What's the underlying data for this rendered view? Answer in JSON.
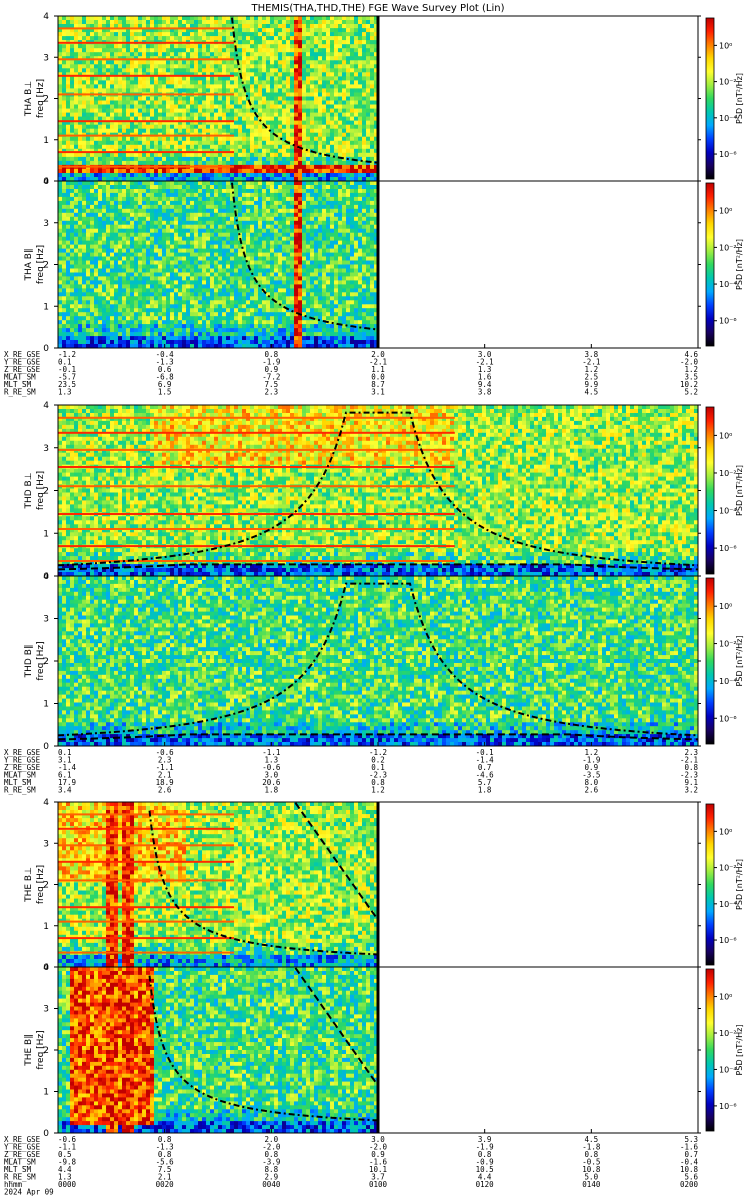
{
  "title": "THEMIS(THA,THD,THE) FGE Wave Survey Plot (Lin)",
  "colorbar": {
    "label": "PSD [nT²/Hz]",
    "ticks": [
      "10⁰",
      "10⁻²",
      "10⁻⁴",
      "10⁻⁶"
    ],
    "colors": [
      "#ffffff",
      "#c00000",
      "#ff2000",
      "#ff8000",
      "#ffd800",
      "#ffff30",
      "#a0ee40",
      "#30d860",
      "#00c8b0",
      "#00a8ff",
      "#0040ff",
      "#0000c0",
      "#180060",
      "#000000"
    ]
  },
  "axes": {
    "ylabel": "freq [Hz]",
    "yticks": [
      "0",
      "1",
      "2",
      "3",
      "4"
    ]
  },
  "ephem_labels": [
    "X_RE_GSE",
    "Y_RE_GSE",
    "Z_RE_GSE",
    "MLAT_SM",
    "MLT_SM",
    "R_RE_SM"
  ],
  "time_axis": {
    "hhmm_label": "hhmm",
    "date": "2024 Apr 09",
    "ticks": [
      "0000",
      "0020",
      "0040",
      "0100",
      "0120",
      "0140",
      "0200"
    ]
  },
  "chart_data": {
    "type": "heatmap",
    "x_axis": "time (hhmm)",
    "y_axis": "freq [Hz]",
    "ylim": [
      0,
      4
    ],
    "xlim": [
      "0000",
      "0200"
    ],
    "probes": [
      {
        "probe": "THA",
        "data_end": "0100",
        "panels": [
          {
            "name": "THA B⊥",
            "ylabel": "THA B⊥"
          },
          {
            "name": "THA B∥",
            "ylabel": "THA B∥"
          }
        ],
        "ephem_rows": [
          [
            "-1.2",
            "-0.4",
            "0.8",
            "2.0",
            "3.0",
            "3.8",
            "4.6"
          ],
          [
            "0.1",
            "-1.3",
            "-1.9",
            "-2.1",
            "-2.1",
            "-2.1",
            "-2.0"
          ],
          [
            "-0.1",
            "0.6",
            "0.9",
            "1.1",
            "1.3",
            "1.2",
            "1.2"
          ],
          [
            "-5.7",
            "-6.8",
            "-7.2",
            "0.0",
            "1.6",
            "2.5",
            "3.5"
          ],
          [
            "23.5",
            "6.9",
            "7.5",
            "8.7",
            "9.4",
            "9.9",
            "10.2"
          ],
          [
            "1.3",
            "1.5",
            "2.3",
            "3.1",
            "3.8",
            "4.5",
            "5.2"
          ]
        ]
      },
      {
        "probe": "THD",
        "data_end": "0200",
        "panels": [
          {
            "name": "THD B⊥",
            "ylabel": "THD B⊥"
          },
          {
            "name": "THD B∥",
            "ylabel": "THD B∥"
          }
        ],
        "ephem_rows": [
          [
            "0.1",
            "-0.6",
            "-1.1",
            "-1.2",
            "-0.1",
            "1.2",
            "2.3"
          ],
          [
            "3.1",
            "2.3",
            "1.3",
            "0.2",
            "-1.4",
            "-1.9",
            "-2.1"
          ],
          [
            "-1.4",
            "-1.1",
            "-0.6",
            "0.1",
            "0.7",
            "0.9",
            "0.8"
          ],
          [
            "6.1",
            "2.1",
            "3.0",
            "-2.3",
            "-4.6",
            "-3.5",
            "-2.3"
          ],
          [
            "17.9",
            "18.9",
            "20.6",
            "0.8",
            "5.7",
            "8.0",
            "9.1"
          ],
          [
            "3.4",
            "2.6",
            "1.8",
            "1.2",
            "1.8",
            "2.6",
            "3.2"
          ]
        ]
      },
      {
        "probe": "THE",
        "data_end": "0100",
        "panels": [
          {
            "name": "THE B⊥",
            "ylabel": "THE B⊥"
          },
          {
            "name": "THE B∥",
            "ylabel": "THE B∥"
          }
        ],
        "ephem_rows": [
          [
            "-0.6",
            "0.8",
            "2.0",
            "3.0",
            "3.9",
            "4.5",
            "5.3"
          ],
          [
            "-1.1",
            "-1.3",
            "-2.0",
            "-2.0",
            "-1.9",
            "-1.8",
            "-1.6"
          ],
          [
            "0.5",
            "0.8",
            "0.8",
            "0.9",
            "0.8",
            "0.8",
            "0.7"
          ],
          [
            "-9.8",
            "-5.6",
            "-3.9",
            "-1.6",
            "-0.9",
            "-0.5",
            "-0.4"
          ],
          [
            "4.4",
            "7.5",
            "8.8",
            "10.1",
            "10.5",
            "10.8",
            "10.8"
          ],
          [
            "1.3",
            "2.1",
            "2.9",
            "3.7",
            "4.4",
            "5.0",
            "5.6"
          ]
        ]
      }
    ]
  }
}
